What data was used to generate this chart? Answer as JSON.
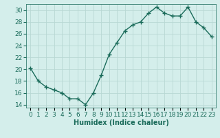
{
  "x": [
    0,
    1,
    2,
    3,
    4,
    5,
    6,
    7,
    8,
    9,
    10,
    11,
    12,
    13,
    14,
    15,
    16,
    17,
    18,
    19,
    20,
    21,
    22,
    23
  ],
  "y": [
    20.2,
    18.0,
    17.0,
    16.5,
    16.0,
    15.0,
    15.0,
    14.0,
    16.0,
    19.0,
    22.5,
    24.5,
    26.5,
    27.5,
    28.0,
    29.5,
    30.5,
    29.5,
    29.0,
    29.0,
    30.5,
    28.0,
    27.0,
    25.5
  ],
  "line_color": "#1a6b5a",
  "marker": "+",
  "marker_size": 4,
  "bg_color": "#d4eeeb",
  "grid_color": "#b8d8d4",
  "xlabel": "Humidex (Indice chaleur)",
  "xlim": [
    -0.5,
    23.5
  ],
  "ylim": [
    13.5,
    31
  ],
  "yticks": [
    14,
    16,
    18,
    20,
    22,
    24,
    26,
    28,
    30
  ],
  "xlabel_fontsize": 7,
  "tick_fontsize": 6.5,
  "line_width": 1.0,
  "marker_edge_width": 1.0
}
